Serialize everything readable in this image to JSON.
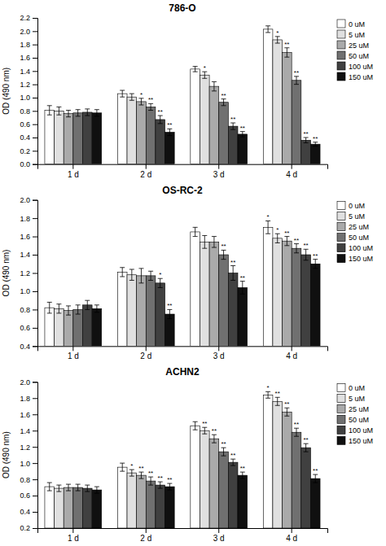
{
  "chart_data": [
    {
      "type": "bar",
      "title": "786-O",
      "y_label": "OD (490 nm)",
      "categories": [
        "1 d",
        "2 d",
        "3 d",
        "4 d"
      ],
      "ylim": [
        0.0,
        2.2
      ],
      "yticks": [
        {
          "value": 0.0,
          "label": "0.0"
        },
        0.2,
        0.4,
        0.6,
        0.8,
        {
          "value": 1.0,
          "label": "1.0"
        },
        1.2,
        1.4,
        1.6,
        1.8,
        {
          "value": 2.0,
          "label": "2.0"
        },
        2.2
      ],
      "grid": false,
      "legend": "right",
      "series": [
        {
          "name": "0 uM",
          "color": "#ffffff",
          "values": [
            0.81,
            1.06,
            1.43,
            2.03
          ],
          "errors": [
            0.07,
            0.05,
            0.04,
            0.05
          ]
        },
        {
          "name": "5 uM",
          "color": "#e0e0e0",
          "values": [
            0.8,
            1.01,
            1.34,
            1.87
          ],
          "errors": [
            0.06,
            0.05,
            0.05,
            0.05
          ],
          "annotations": [
            null,
            null,
            "*",
            "*"
          ]
        },
        {
          "name": "25 uM",
          "color": "#aaaaaa",
          "values": [
            0.76,
            0.94,
            1.17,
            1.68
          ],
          "errors": [
            0.05,
            0.05,
            0.07,
            0.07
          ],
          "annotations": [
            null,
            "*",
            null,
            "**"
          ]
        },
        {
          "name": "50 uM",
          "color": "#707070",
          "values": [
            0.77,
            0.86,
            0.93,
            1.26
          ],
          "errors": [
            0.05,
            0.05,
            0.05,
            0.06
          ],
          "annotations": [
            null,
            "**",
            "**",
            "**"
          ]
        },
        {
          "name": "100 uM",
          "color": "#404040",
          "values": [
            0.78,
            0.67,
            0.57,
            0.36
          ],
          "errors": [
            0.05,
            0.06,
            0.05,
            0.04
          ],
          "annotations": [
            null,
            "**",
            "**",
            "**"
          ]
        },
        {
          "name": "150 uM",
          "color": "#101010",
          "values": [
            0.77,
            0.48,
            0.45,
            0.3
          ],
          "errors": [
            0.05,
            0.05,
            0.04,
            0.03
          ],
          "annotations": [
            null,
            "**",
            "**",
            "**"
          ]
        }
      ]
    },
    {
      "type": "bar",
      "title": "OS-RC-2",
      "y_label": "OD (490 nm)",
      "categories": [
        "1 d",
        "2 d",
        "3 d",
        "4 d"
      ],
      "ylim": [
        0.4,
        2.0
      ],
      "yticks": [
        0.4,
        0.6,
        0.8,
        {
          "value": 1.0,
          "label": "1.0"
        },
        1.2,
        1.4,
        1.6,
        1.8,
        {
          "value": 2.0,
          "label": "2.0"
        }
      ],
      "grid": false,
      "legend": "right",
      "series": [
        {
          "name": "0 uM",
          "color": "#ffffff",
          "values": [
            0.82,
            1.21,
            1.65,
            1.7
          ],
          "errors": [
            0.06,
            0.05,
            0.05,
            0.07
          ],
          "annotations": [
            null,
            null,
            null,
            "*"
          ]
        },
        {
          "name": "5 uM",
          "color": "#e0e0e0",
          "values": [
            0.81,
            1.18,
            1.54,
            1.58
          ],
          "errors": [
            0.05,
            0.06,
            0.07,
            0.05
          ],
          "annotations": [
            null,
            null,
            null,
            "*"
          ]
        },
        {
          "name": "25 uM",
          "color": "#aaaaaa",
          "values": [
            0.79,
            1.17,
            1.54,
            1.55
          ],
          "errors": [
            0.05,
            0.08,
            0.06,
            0.05
          ],
          "annotations": [
            null,
            null,
            null,
            "**"
          ]
        },
        {
          "name": "50 uM",
          "color": "#707070",
          "values": [
            0.8,
            1.17,
            1.4,
            1.47
          ],
          "errors": [
            0.05,
            0.05,
            0.05,
            0.05
          ],
          "annotations": [
            null,
            null,
            "**",
            "**"
          ]
        },
        {
          "name": "100 uM",
          "color": "#404040",
          "values": [
            0.85,
            1.09,
            1.2,
            1.4
          ],
          "errors": [
            0.05,
            0.05,
            0.08,
            0.06
          ],
          "annotations": [
            null,
            "*",
            "**",
            "**"
          ]
        },
        {
          "name": "150 uM",
          "color": "#101010",
          "values": [
            0.81,
            0.75,
            1.04,
            1.3
          ],
          "errors": [
            0.04,
            0.05,
            0.07,
            0.05
          ],
          "annotations": [
            null,
            "**",
            "**",
            "**"
          ]
        }
      ]
    },
    {
      "type": "bar",
      "title": "ACHN2",
      "y_label": "OD (490 nm)",
      "categories": [
        "1 d",
        "2 d",
        "3 d",
        "4 d"
      ],
      "ylim": [
        0.2,
        2.0
      ],
      "yticks": [
        0.2,
        0.4,
        0.6,
        0.8,
        {
          "value": 1.0,
          "label": "1.0"
        },
        1.2,
        1.4,
        1.6,
        1.8,
        {
          "value": 2.0,
          "label": "2.0"
        }
      ],
      "grid": false,
      "legend": "right",
      "series": [
        {
          "name": "0 uM",
          "color": "#ffffff",
          "values": [
            0.71,
            0.95,
            1.46,
            1.84
          ],
          "errors": [
            0.05,
            0.05,
            0.05,
            0.04
          ],
          "annotations": [
            null,
            null,
            null,
            "*"
          ]
        },
        {
          "name": "5 uM",
          "color": "#e0e0e0",
          "values": [
            0.69,
            0.88,
            1.4,
            1.76
          ],
          "errors": [
            0.04,
            0.04,
            0.04,
            0.05
          ],
          "annotations": [
            null,
            "*",
            "**",
            "**"
          ]
        },
        {
          "name": "25 uM",
          "color": "#aaaaaa",
          "values": [
            0.7,
            0.85,
            1.3,
            1.63
          ],
          "errors": [
            0.04,
            0.04,
            0.05,
            0.05
          ],
          "annotations": [
            null,
            "**",
            "**",
            "**"
          ]
        },
        {
          "name": "50 uM",
          "color": "#707070",
          "values": [
            0.7,
            0.78,
            1.14,
            1.38
          ],
          "errors": [
            0.04,
            0.05,
            0.05,
            0.05
          ],
          "annotations": [
            null,
            "**",
            "**",
            "**"
          ]
        },
        {
          "name": "100 uM",
          "color": "#404040",
          "values": [
            0.69,
            0.73,
            1.01,
            1.19
          ],
          "errors": [
            0.04,
            0.04,
            0.04,
            0.05
          ],
          "annotations": [
            null,
            "**",
            "**",
            "**"
          ]
        },
        {
          "name": "150 uM",
          "color": "#101010",
          "values": [
            0.67,
            0.71,
            0.85,
            0.81
          ],
          "errors": [
            0.04,
            0.04,
            0.04,
            0.05
          ],
          "annotations": [
            null,
            "**",
            "**",
            "**"
          ]
        }
      ]
    }
  ]
}
